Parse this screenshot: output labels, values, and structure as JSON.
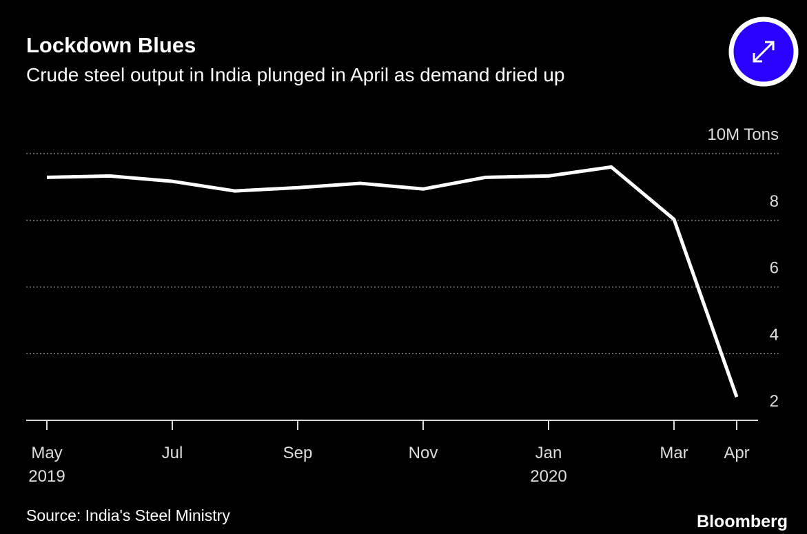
{
  "chart_data": {
    "type": "line",
    "title": "Lockdown Blues",
    "subtitle": "Crude steel output in India plunged in April as demand dried up",
    "source": "Source: India's Steel Ministry",
    "brand": "Bloomberg",
    "categories": [
      "May 2019",
      null,
      "Jul",
      null,
      "Sep",
      null,
      "Nov",
      null,
      "Jan 2020",
      null,
      "Mar",
      "Apr"
    ],
    "series": [
      {
        "name": "Crude steel output",
        "color": "#ffffff",
        "values": [
          9.29,
          9.33,
          9.17,
          8.88,
          8.98,
          9.11,
          8.94,
          9.29,
          9.33,
          9.6,
          8.03,
          2.7
        ]
      }
    ],
    "ylim": [
      2,
      10
    ],
    "yticks": [
      2,
      4,
      6,
      8,
      {
        "value": 10,
        "label": "10M Tons"
      }
    ],
    "grid": true
  }
}
